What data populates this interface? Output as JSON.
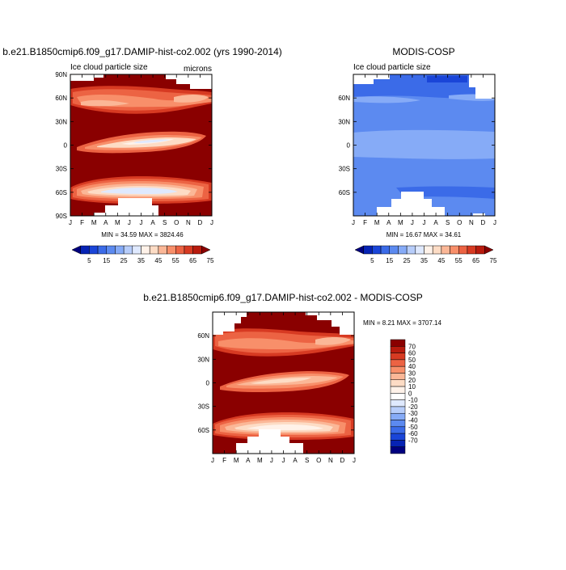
{
  "figure": {
    "colors": {
      "seq": [
        "#00007f",
        "#0623b4",
        "#1a45d8",
        "#3b6be8",
        "#5c8af0",
        "#86abf7",
        "#b7cdfa",
        "#dfe9fe",
        "#fff2e9",
        "#fddcc5",
        "#fbb797",
        "#f88f6a",
        "#ec6343",
        "#d73a22",
        "#b81b0e",
        "#8a0000"
      ],
      "diff": [
        "#00007f",
        "#0623b4",
        "#1a45d8",
        "#3b6be8",
        "#5c8af0",
        "#86abf7",
        "#b7cdfa",
        "#dfe9fe",
        "#ffffff",
        "#fff2e9",
        "#fddcc5",
        "#fbb797",
        "#f88f6a",
        "#ec6343",
        "#d73a22",
        "#b81b0e",
        "#8a0000"
      ]
    }
  },
  "chart_data": [
    {
      "type": "heatmap",
      "title": "b.e21.B1850cmip6.f09_g17.DAMIP-hist-co2.002 (yrs 1990-2014)",
      "left_label": "Ice cloud particle size",
      "right_label": "microns",
      "xlabels": [
        "J",
        "F",
        "M",
        "A",
        "M",
        "J",
        "J",
        "A",
        "S",
        "O",
        "N",
        "D",
        "J"
      ],
      "ylabels": [
        "90N",
        "60N",
        "30N",
        "0",
        "30S",
        "60S",
        "90S"
      ],
      "stats": "MIN =  34.59 MAX = 3824.46",
      "colorbar_labels": [
        "5",
        "15",
        "25",
        "35",
        "45",
        "55",
        "65",
        "75"
      ],
      "value_range": [
        34.59,
        3824.46
      ]
    },
    {
      "type": "heatmap",
      "title": "MODIS-COSP",
      "left_label": "Ice cloud particle size",
      "xlabels": [
        "J",
        "F",
        "M",
        "A",
        "M",
        "J",
        "J",
        "A",
        "S",
        "O",
        "N",
        "D",
        "J"
      ],
      "ylabels": [
        "60N",
        "30N",
        "0",
        "30S",
        "60S"
      ],
      "stats": "MIN =  16.67 MAX =  34.61",
      "colorbar_labels": [
        "5",
        "15",
        "25",
        "35",
        "45",
        "55",
        "65",
        "75"
      ],
      "value_range": [
        16.67,
        34.61
      ]
    },
    {
      "type": "heatmap",
      "title": "b.e21.B1850cmip6.f09_g17.DAMIP-hist-co2.002 - MODIS-COSP",
      "xlabels": [
        "J",
        "F",
        "M",
        "A",
        "M",
        "J",
        "J",
        "A",
        "S",
        "O",
        "N",
        "D",
        "J"
      ],
      "ylabels": [
        "60N",
        "30N",
        "0",
        "30S",
        "60S"
      ],
      "stats": "MIN =   8.21 MAX = 3707.14",
      "colorbar_labels": [
        "70",
        "60",
        "50",
        "40",
        "30",
        "20",
        "10",
        "0",
        "-10",
        "-20",
        "-30",
        "-40",
        "-50",
        "-60",
        "-70"
      ],
      "value_range": [
        8.21,
        3707.14
      ]
    }
  ]
}
